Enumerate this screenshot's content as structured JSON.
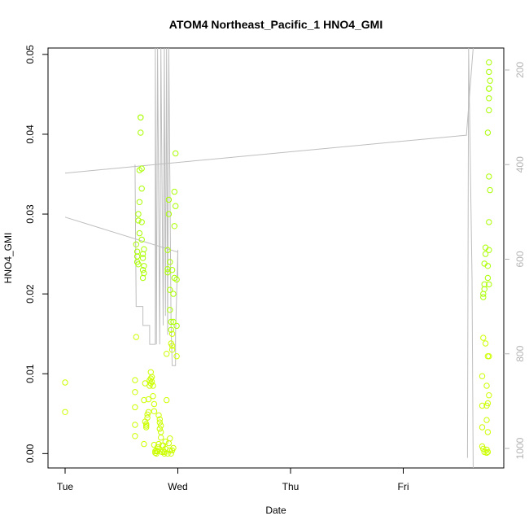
{
  "chart_data": {
    "type": "scatter",
    "title": "ATOM4 Northeast_Pacific_1 HNO4_GMI",
    "xlabel": "Date",
    "ylabel": "HNO4_GMI",
    "xlim": [
      0,
      3.8
    ],
    "ylim": [
      -0.0018,
      0.0508
    ],
    "x_ticks": [
      {
        "label": "Tue",
        "value": 0
      },
      {
        "label": "Wed",
        "value": 1
      },
      {
        "label": "Thu",
        "value": 2
      },
      {
        "label": "Fri",
        "value": 3
      }
    ],
    "y_ticks": [
      0.0,
      0.01,
      0.02,
      0.03,
      0.04,
      0.05
    ],
    "y_tick_labels": [
      "0.00",
      "0.01",
      "0.02",
      "0.03",
      "0.04",
      "0.05"
    ],
    "y2_ticks": [
      200,
      400,
      600,
      800,
      1000
    ],
    "y2_lim": [
      1050,
      115
    ],
    "point_color_high": "#aaff00",
    "point_color_low": "#ccff00",
    "line_color": "#bebebe",
    "grid": false,
    "series": [
      {
        "values": [
          [
            0.0,
            0.0089
          ],
          [
            0.0,
            0.0052
          ],
          [
            0.62,
            0.0022
          ],
          [
            0.62,
            0.0036
          ],
          [
            0.62,
            0.0058
          ],
          [
            0.62,
            0.0077
          ],
          [
            0.62,
            0.0092
          ],
          [
            0.63,
            0.0146
          ],
          [
            0.63,
            0.0262
          ],
          [
            0.64,
            0.0247
          ],
          [
            0.64,
            0.0253
          ],
          [
            0.64,
            0.024
          ],
          [
            0.65,
            0.0237
          ],
          [
            0.65,
            0.03
          ],
          [
            0.65,
            0.0292
          ],
          [
            0.66,
            0.0276
          ],
          [
            0.66,
            0.0315
          ],
          [
            0.66,
            0.0355
          ],
          [
            0.67,
            0.0402
          ],
          [
            0.67,
            0.0421
          ],
          [
            0.67,
            0.0421
          ],
          [
            0.68,
            0.0357
          ],
          [
            0.68,
            0.0332
          ],
          [
            0.68,
            0.029
          ],
          [
            0.68,
            0.0268
          ],
          [
            0.69,
            0.025
          ],
          [
            0.69,
            0.023
          ],
          [
            0.69,
            0.022
          ],
          [
            0.69,
            0.0245
          ],
          [
            0.7,
            0.0235
          ],
          [
            0.7,
            0.0256
          ],
          [
            0.7,
            0.0226
          ],
          [
            0.7,
            0.0012
          ],
          [
            0.7,
            0.0067
          ],
          [
            0.71,
            0.0088
          ],
          [
            0.71,
            0.004
          ],
          [
            0.72,
            0.0035
          ],
          [
            0.72,
            0.0033
          ],
          [
            0.72,
            0.0037
          ],
          [
            0.73,
            0.0045
          ],
          [
            0.73,
            0.0049
          ],
          [
            0.74,
            0.0052
          ],
          [
            0.74,
            0.0068
          ],
          [
            0.75,
            0.0085
          ],
          [
            0.75,
            0.0092
          ],
          [
            0.76,
            0.0088
          ],
          [
            0.76,
            0.0094
          ],
          [
            0.76,
            0.0102
          ],
          [
            0.77,
            0.0096
          ],
          [
            0.77,
            0.009
          ],
          [
            0.78,
            0.0085
          ],
          [
            0.78,
            0.0072
          ],
          [
            0.79,
            0.0062
          ],
          [
            0.79,
            0.0053
          ],
          [
            0.79,
            0.0011
          ],
          [
            0.8,
            0.0003
          ],
          [
            0.8,
            0.0001
          ],
          [
            0.81,
            0.0004
          ],
          [
            0.81,
            0.0
          ],
          [
            0.82,
            0.0008
          ],
          [
            0.82,
            0.0003
          ],
          [
            0.83,
            0.0012
          ],
          [
            0.83,
            0.0048
          ],
          [
            0.84,
            0.0043
          ],
          [
            0.84,
            0.0039
          ],
          [
            0.84,
            0.0031
          ],
          [
            0.85,
            0.0035
          ],
          [
            0.85,
            0.0027
          ],
          [
            0.85,
            0.002
          ],
          [
            0.86,
            0.001
          ],
          [
            0.86,
            0.0002
          ],
          [
            0.87,
            0.0004
          ],
          [
            0.87,
            0.001
          ],
          [
            0.88,
            0.0002
          ],
          [
            0.88,
            0.0
          ],
          [
            0.89,
            0.0006
          ],
          [
            0.89,
            0.0015
          ],
          [
            0.9,
            0.0067
          ],
          [
            0.9,
            0.0125
          ],
          [
            0.91,
            0.0227
          ],
          [
            0.91,
            0.0231
          ],
          [
            0.91,
            0.0255
          ],
          [
            0.92,
            0.0318
          ],
          [
            0.92,
            0.03
          ],
          [
            0.93,
            0.024
          ],
          [
            0.93,
            0.0205
          ],
          [
            0.93,
            0.018
          ],
          [
            0.94,
            0.0165
          ],
          [
            0.94,
            0.0155
          ],
          [
            0.94,
            0.0138
          ],
          [
            0.95,
            0.0135
          ],
          [
            0.95,
            0.013
          ],
          [
            0.95,
            0.015
          ],
          [
            0.96,
            0.0165
          ],
          [
            0.96,
            0.02
          ],
          [
            0.97,
            0.022
          ],
          [
            0.97,
            0.0285
          ],
          [
            0.97,
            0.0328
          ],
          [
            0.98,
            0.0376
          ],
          [
            0.98,
            0.031
          ],
          [
            0.99,
            0.0218
          ],
          [
            0.99,
            0.016
          ],
          [
            0.99,
            0.0122
          ],
          [
            0.95,
            0.0004
          ],
          [
            0.94,
            0.0
          ],
          [
            0.93,
            0.0019
          ],
          [
            0.92,
            0.0013
          ],
          [
            0.96,
            0.0007
          ],
          [
            0.93,
            0.0004
          ],
          [
            0.91,
            0.0
          ],
          [
            0.95,
            0.023
          ],
          [
            3.7,
            0.0009
          ],
          [
            3.7,
            0.0033
          ],
          [
            3.7,
            0.006
          ],
          [
            3.7,
            0.0097
          ],
          [
            3.71,
            0.0145
          ],
          [
            3.71,
            0.0196
          ],
          [
            3.71,
            0.02
          ],
          [
            3.72,
            0.0206
          ],
          [
            3.72,
            0.0212
          ],
          [
            3.72,
            0.0238
          ],
          [
            3.73,
            0.025
          ],
          [
            3.73,
            0.0258
          ],
          [
            3.73,
            0.0138
          ],
          [
            3.74,
            0.0085
          ],
          [
            3.74,
            0.006
          ],
          [
            3.74,
            0.0042
          ],
          [
            3.74,
            0.0005
          ],
          [
            3.75,
            0.0002
          ],
          [
            3.75,
            0.0027
          ],
          [
            3.75,
            0.0063
          ],
          [
            3.75,
            0.0122
          ],
          [
            3.76,
            0.0122
          ],
          [
            3.76,
            0.0073
          ],
          [
            3.75,
            0.022
          ],
          [
            3.76,
            0.0212
          ],
          [
            3.75,
            0.0235
          ],
          [
            3.76,
            0.0255
          ],
          [
            3.76,
            0.029
          ],
          [
            3.77,
            0.033
          ],
          [
            3.76,
            0.0347
          ],
          [
            3.75,
            0.0402
          ],
          [
            3.76,
            0.043
          ],
          [
            3.76,
            0.0445
          ],
          [
            3.76,
            0.0457
          ],
          [
            3.77,
            0.0467
          ],
          [
            3.76,
            0.0478
          ],
          [
            3.76,
            0.049
          ],
          [
            3.76,
            0.0457
          ],
          [
            3.74,
            0.0001
          ],
          [
            3.71,
            0.0006
          ],
          [
            3.72,
            0.0002
          ]
        ]
      },
      {
        "axis": "right",
        "values": [
          [
            0.0,
            418
          ],
          [
            0.0,
            511
          ],
          [
            3.55,
            338
          ],
          [
            3.56,
            338
          ],
          [
            3.57,
            1020
          ],
          [
            3.58,
            100
          ],
          [
            3.58,
            155
          ],
          [
            3.61,
            640
          ],
          [
            3.62,
            1100
          ],
          [
            3.62,
            30
          ]
        ]
      }
    ]
  }
}
